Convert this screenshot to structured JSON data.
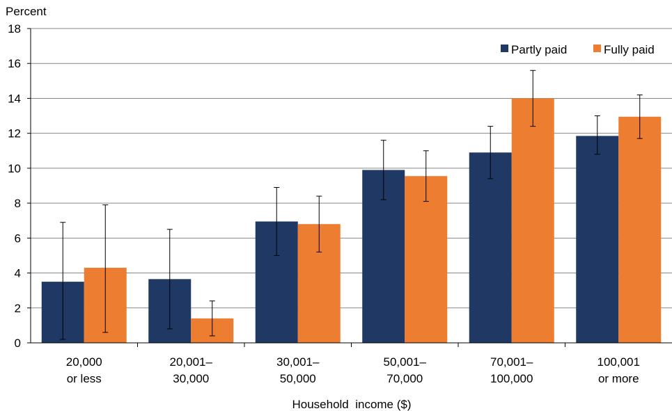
{
  "chart_data": {
    "type": "bar",
    "ylabel": "Percent",
    "xlabel": "Household  income ($)",
    "ylim": [
      0,
      18
    ],
    "yticks": [
      "0",
      "2",
      "4",
      "6",
      "8",
      "10",
      "12",
      "14",
      "16",
      "18"
    ],
    "grid": true,
    "legend_position": "top-right",
    "categories": [
      [
        "20,000",
        "or less"
      ],
      [
        "20,001–",
        "30,000"
      ],
      [
        "30,001–",
        "50,000"
      ],
      [
        "50,001–",
        "70,000"
      ],
      [
        "70,001–",
        "100,000"
      ],
      [
        "100,001",
        "or more"
      ]
    ],
    "series": [
      {
        "name": "Partly paid",
        "color": "#1f3864",
        "values": [
          3.5,
          3.65,
          6.95,
          9.9,
          10.9,
          11.85
        ],
        "error_low": [
          0.2,
          0.8,
          5.0,
          8.2,
          9.4,
          10.8
        ],
        "error_high": [
          6.9,
          6.5,
          8.9,
          11.6,
          12.4,
          13.0
        ]
      },
      {
        "name": "Fully paid",
        "color": "#ed7d31",
        "values": [
          4.3,
          1.4,
          6.8,
          9.55,
          14.0,
          12.95
        ],
        "error_low": [
          0.6,
          0.4,
          5.2,
          8.1,
          12.4,
          11.7
        ],
        "error_high": [
          7.9,
          2.4,
          8.4,
          11.0,
          15.6,
          14.2
        ]
      }
    ]
  }
}
